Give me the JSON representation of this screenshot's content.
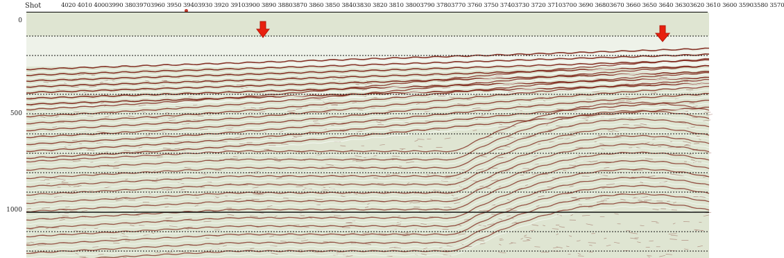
{
  "header": {
    "shot_label": "Shot",
    "shot_numbers": "4020 4010 40003990 38039703960 3950 39403930 3920 39103900 3890 38803870 3860 3850 38403830 3820 3810 38003790 37803770 3760 3750 37403730 3720 37103700 3690 36803670 3660 3650 3640 36303620 3610 3600 35903580 3570"
  },
  "y_axis": {
    "ticks": [
      "0",
      "500",
      "1000"
    ]
  },
  "colors": {
    "wiggle_red": "#7a1f14",
    "trough_white": "#f7fbf7",
    "background": "#dfe5d2"
  },
  "annotations": {
    "arrows": [
      "red-down-arrow",
      "red-down-arrow"
    ]
  }
}
